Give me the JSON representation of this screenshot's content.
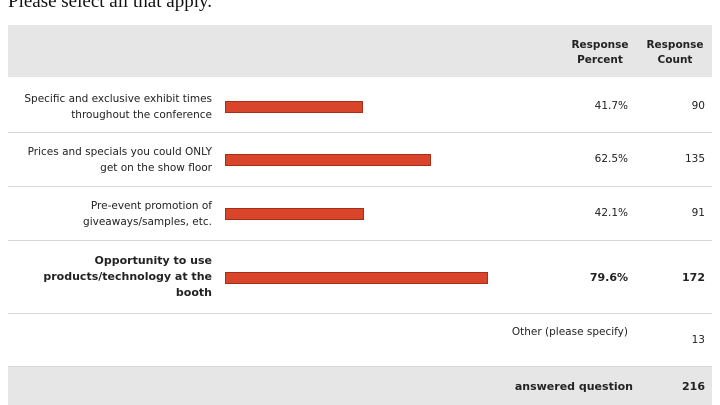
{
  "title": "Please select all that apply.",
  "table": {
    "headers": [
      "Response Percent",
      "Response Count"
    ],
    "rows": [
      {
        "label": "Specific and exclusive exhibit times throughout the conference",
        "percent": 41.7,
        "percent_label": "41.7%",
        "count": 90
      },
      {
        "label": "Prices and specials you could ONLY get on the show floor",
        "percent": 62.5,
        "percent_label": "62.5%",
        "count": 135
      },
      {
        "label": "Pre-event promotion of giveaways/samples, etc.",
        "percent": 42.1,
        "percent_label": "42.1%",
        "count": 91
      },
      {
        "label": "Opportunity to use products/technology at the booth",
        "percent": 79.6,
        "percent_label": "79.6%",
        "count": 172,
        "highlight": true
      }
    ],
    "other": {
      "label": "Other (please specify)",
      "count": 13
    },
    "answered": {
      "label": "answered question",
      "count": 216
    },
    "bar_color": "#d9452b",
    "percent_max": 100
  }
}
